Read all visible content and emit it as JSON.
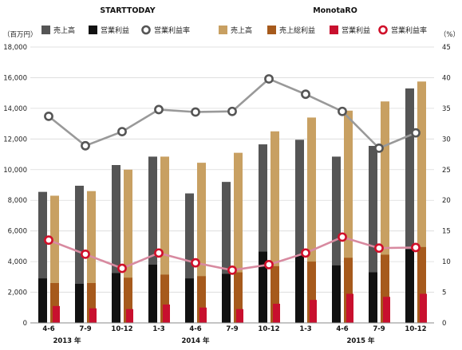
{
  "chart_data": {
    "type": "bar",
    "categories": [
      "4-6",
      "7-9",
      "10-12",
      "1-3",
      "4-6",
      "7-9",
      "10-12",
      "1-3",
      "4-6",
      "7-9",
      "10-12"
    ],
    "year_labels": [
      {
        "label": "2013 年",
        "from": 0,
        "to": 1
      },
      {
        "label": "2014 年",
        "from": 2,
        "to": 6
      },
      {
        "label": "2015 年",
        "from": 7,
        "to": 10
      }
    ],
    "left_axis": {
      "unit_label": "（百万円）",
      "min": 0,
      "max": 18000,
      "step": 2000,
      "ticks": [
        "0",
        "2,000",
        "4,000",
        "6,000",
        "8,000",
        "10,000",
        "12,000",
        "14,000",
        "16,000",
        "18,000"
      ]
    },
    "right_axis": {
      "unit_label": "（%）",
      "min": 0,
      "max": 45,
      "step": 5,
      "ticks": [
        "0",
        "5",
        "10",
        "15",
        "20",
        "25",
        "30",
        "35",
        "40",
        "45"
      ]
    },
    "grid": true,
    "groups": [
      {
        "title": "STARTTODAY",
        "series": [
          {
            "name": "売上高",
            "kind": "bar",
            "color": "#555555",
            "values": [
              8550,
              8950,
              10300,
              10850,
              8450,
              9200,
              11650,
              11950,
              10850,
              11550,
              15300
            ]
          },
          {
            "name": "営業利益",
            "kind": "bar",
            "color": "#111111",
            "values": [
              2900,
              2550,
              3250,
              3800,
              2900,
              3200,
              4650,
              4450,
              3750,
              3300,
              4800
            ]
          },
          {
            "name": "営業利益率",
            "kind": "line",
            "axis": "right",
            "color": "#999999",
            "values": [
              33.7,
              28.9,
              31.2,
              34.8,
              34.4,
              34.5,
              39.8,
              37.3,
              34.5,
              28.5,
              31.0
            ]
          }
        ]
      },
      {
        "title": "MonotaRO",
        "series": [
          {
            "name": "売上高",
            "kind": "bar",
            "color": "#c8a062",
            "values": [
              8300,
              8600,
              10000,
              10850,
              10450,
              11100,
              12500,
              13400,
              13850,
              14450,
              15750
            ]
          },
          {
            "name": "売上総利益",
            "kind": "bar",
            "color": "#a65a1c",
            "values": [
              2600,
              2600,
              2950,
              3150,
              3050,
              3300,
              3700,
              4000,
              4250,
              4450,
              4950
            ]
          },
          {
            "name": "営業利益",
            "kind": "bar",
            "color": "#c8102e",
            "values": [
              1100,
              950,
              900,
              1200,
              1000,
              900,
              1250,
              1500,
              1900,
              1700,
              1900
            ]
          },
          {
            "name": "営業利益率",
            "kind": "line",
            "axis": "right",
            "color": "#d88aa0",
            "values": [
              13.5,
              11.2,
              8.9,
              11.4,
              9.8,
              8.6,
              9.5,
              11.4,
              14.0,
              12.2,
              12.3
            ]
          }
        ]
      }
    ]
  }
}
